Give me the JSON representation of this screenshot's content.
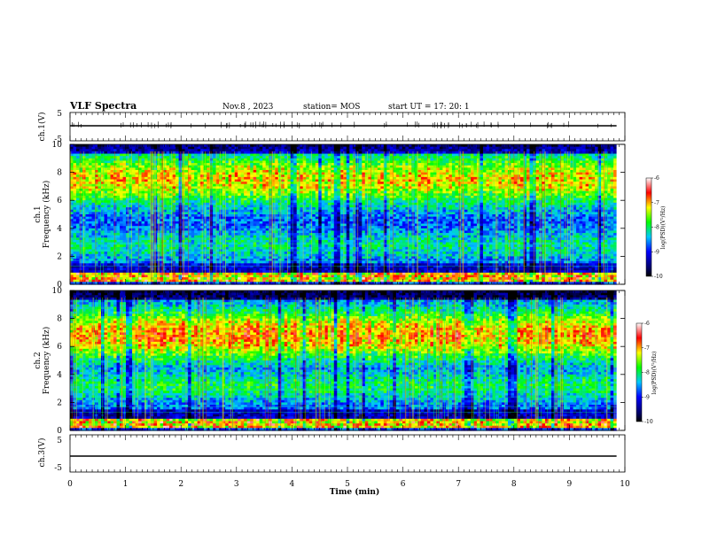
{
  "header": {
    "title": "VLF Spectra",
    "date": "Nov.8 , 2023",
    "station": "station= MOS",
    "start": "start UT = 17: 20: 1"
  },
  "chart_data": {
    "type": "heatmap",
    "xlabel": "Time (min)",
    "x_ticks": [
      "0",
      "1",
      "2",
      "3",
      "4",
      "5",
      "6",
      "7",
      "8",
      "9",
      "10"
    ],
    "xlim": [
      0,
      10
    ],
    "data_end_min": 9.85,
    "panels": [
      {
        "id": "ch1-waveform",
        "type": "line",
        "ylabel": "ch.1(V)",
        "ylim": [
          -5,
          5
        ],
        "y_ticks": [
          "5",
          "-5"
        ],
        "trace_level": 0
      },
      {
        "id": "ch1-spectrogram",
        "type": "heatmap",
        "ylabel": "ch.1\nFrequency (kHz)",
        "ylim": [
          0,
          10
        ],
        "y_ticks": [
          "0",
          "2",
          "4",
          "6",
          "8",
          "10"
        ],
        "band_centers_khz": [
          7.5,
          2.8
        ],
        "band_intensity": [
          0.85,
          0.45
        ],
        "low_band_khz": [
          0.2,
          0.8
        ],
        "colorbar": {
          "label": "log(PSD)(V²/Hz)",
          "ticks": [
            "-6",
            "-7",
            "-8",
            "-9",
            "-10"
          ],
          "range": [
            -10,
            -6
          ]
        }
      },
      {
        "id": "ch2-spectrogram",
        "type": "heatmap",
        "ylabel": "ch.2\nFrequency (kHz)",
        "ylim": [
          0,
          10
        ],
        "y_ticks": [
          "0",
          "2",
          "4",
          "6",
          "8",
          "10"
        ],
        "band_centers_khz": [
          6.8,
          3.2
        ],
        "band_intensity": [
          0.95,
          0.55
        ],
        "low_band_khz": [
          0.2,
          0.8
        ],
        "colorbar": {
          "label": "log(PSD)(V²/Hz)",
          "ticks": [
            "-6",
            "-7",
            "-8",
            "-9",
            "-10"
          ],
          "range": [
            -10,
            -6
          ]
        }
      },
      {
        "id": "ch3-waveform",
        "type": "line",
        "ylabel": "ch.3(V)",
        "ylim": [
          -5,
          5
        ],
        "y_ticks": [
          "5",
          "-5"
        ],
        "trace_level": 0
      }
    ]
  }
}
